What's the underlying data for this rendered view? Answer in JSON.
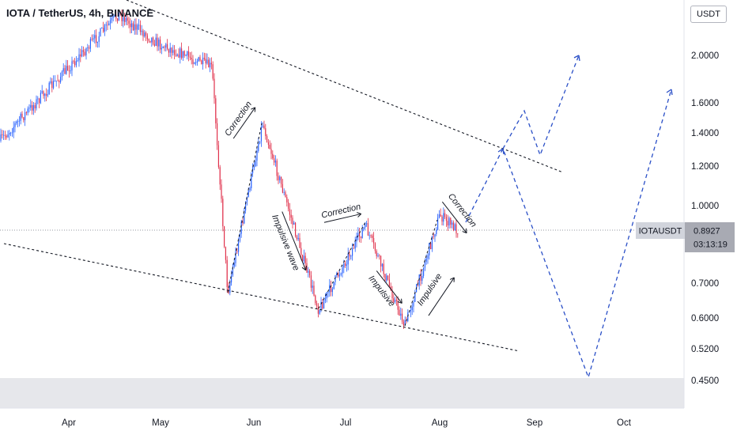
{
  "header": {
    "symbol_title": "IOTA / TetherUS, 4h, BINANCE",
    "currency_button": "USDT"
  },
  "price_tag": {
    "symbol": "IOTAUSDT",
    "price": "0.8927",
    "countdown": "03:13:19"
  },
  "annotations": [
    "Correction",
    "Impulsive wave",
    "Correction",
    "Impulsive",
    "Impulsive",
    "Correction"
  ],
  "colors": {
    "up_candle": "#2962ff",
    "down_candle": "#e0314b",
    "trendline": "#131722",
    "projection": "#2a4fc7",
    "price_tag_bg": "#a8aab3",
    "price_tag_label_bg": "#d1d4dc"
  },
  "chart_data": {
    "type": "candlestick",
    "timeframe": "4h",
    "scale": "log",
    "x_ticks": [
      "Apr",
      "May",
      "Jun",
      "Jul",
      "Aug",
      "Sep",
      "Oct"
    ],
    "y_ticks": [
      "2",
      "2.0000",
      "1.6000",
      "1.4000",
      "1.2000",
      "1.0000",
      "0.7000",
      "0.6000",
      "0.5200",
      "0.4500"
    ],
    "ylim": [
      0.39,
      2.4
    ],
    "last_price": 0.8927,
    "swing_points": [
      {
        "date": "Mar 15",
        "price": 1.35
      },
      {
        "date": "Apr 16",
        "price": 2.35
      },
      {
        "date": "May 1",
        "price": 2.1
      },
      {
        "date": "May 15",
        "price": 1.9
      },
      {
        "date": "May 23",
        "price": 0.66
      },
      {
        "date": "Jun 3",
        "price": 1.48
      },
      {
        "date": "Jun 22",
        "price": 0.63
      },
      {
        "date": "Jul 8",
        "price": 0.9
      },
      {
        "date": "Jul 20",
        "price": 0.56
      },
      {
        "date": "Aug 3",
        "price": 0.96
      },
      {
        "date": "Aug 7",
        "price": 0.89
      }
    ],
    "projection_path": [
      {
        "date": "Aug 7",
        "price": 0.89
      },
      {
        "date": "Aug 22",
        "price": 1.29
      },
      {
        "date": "Sep 19",
        "price": 0.44
      },
      {
        "date": "Oct 16",
        "price": 1.72
      }
    ],
    "alternate_projection_path": [
      {
        "date": "Aug 22",
        "price": 1.29
      },
      {
        "date": "Aug 29",
        "price": 1.52
      },
      {
        "date": "Sep 1",
        "price": 1.25
      },
      {
        "date": "Sep 14",
        "price": 1.98
      }
    ]
  }
}
